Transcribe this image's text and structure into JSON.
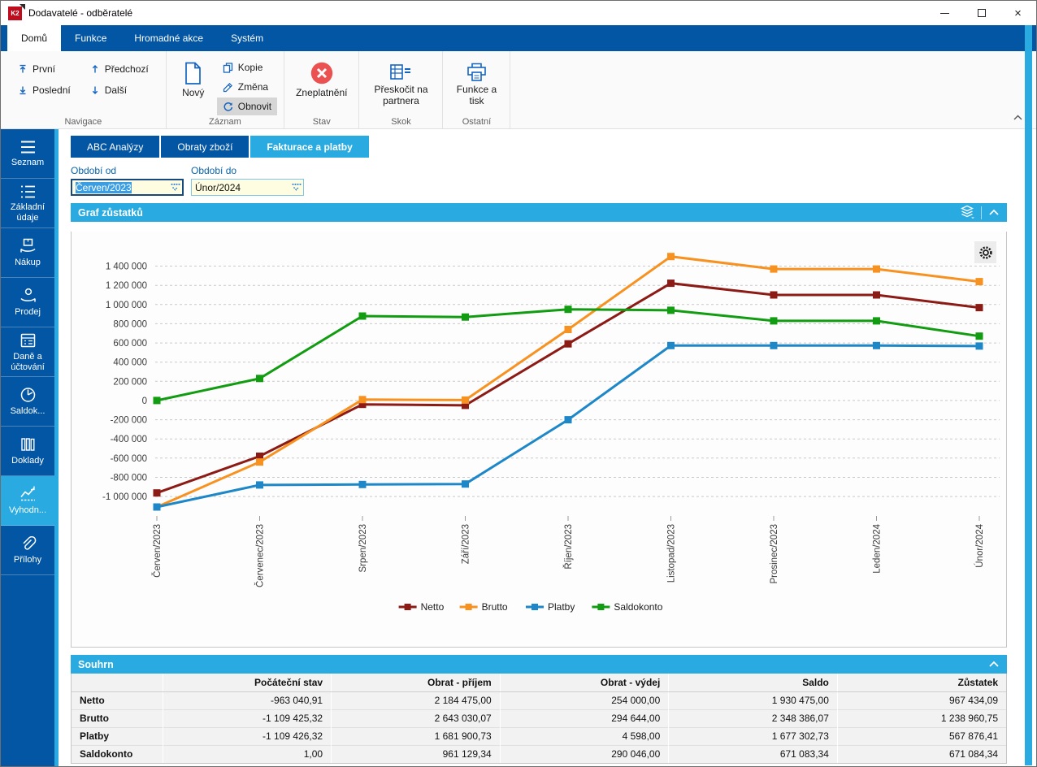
{
  "window": {
    "title": "Dodavatelé - odběratelé",
    "app_badge": "K2"
  },
  "ribbon": {
    "tabs": [
      {
        "label": "Domů",
        "active": true
      },
      {
        "label": "Funkce",
        "active": false
      },
      {
        "label": "Hromadné akce",
        "active": false
      },
      {
        "label": "Systém",
        "active": false
      }
    ],
    "navigace": {
      "label": "Navigace",
      "first": "První",
      "last": "Poslední",
      "prev": "Předchozí",
      "next": "Další"
    },
    "zaznam": {
      "label": "Záznam",
      "new": "Nový",
      "copy": "Kopie",
      "change": "Změna",
      "refresh": "Obnovit",
      "refresh_highlighted": true
    },
    "stav": {
      "label": "Stav",
      "invalidate": "Zneplatnění"
    },
    "skok": {
      "label": "Skok",
      "jump": "Přeskočit na partnera"
    },
    "ostatni": {
      "label": "Ostatní",
      "print": "Funkce a tisk"
    }
  },
  "sidebar": {
    "items": [
      {
        "label": "Seznam",
        "active": false
      },
      {
        "label": "Základní údaje",
        "active": false
      },
      {
        "label": "Nákup",
        "active": false
      },
      {
        "label": "Prodej",
        "active": false
      },
      {
        "label": "Daně a účtování",
        "active": false
      },
      {
        "label": "Saldok...",
        "active": false
      },
      {
        "label": "Doklady",
        "active": false
      },
      {
        "label": "Vyhodn...",
        "active": true
      },
      {
        "label": "Přílohy",
        "active": false
      }
    ]
  },
  "content": {
    "tabs": [
      {
        "label": "ABC Analýzy",
        "active": false
      },
      {
        "label": "Obraty zboží",
        "active": false
      },
      {
        "label": "Fakturace a platby",
        "active": true
      }
    ],
    "filters": {
      "from": {
        "label": "Období od",
        "value": "Červen/2023",
        "focused": true
      },
      "to": {
        "label": "Období do",
        "value": "Únor/2024",
        "focused": false
      }
    }
  },
  "panels": {
    "chart": {
      "title": "Graf zůstatků"
    },
    "summary": {
      "title": "Souhrn"
    }
  },
  "chart_data": {
    "type": "line",
    "title": "Graf zůstatků",
    "marker": "square",
    "grid": "horizontal-dashed",
    "legend_position": "bottom",
    "categories": [
      "Červen/2023",
      "Červenec/2023",
      "Srpen/2023",
      "Září/2023",
      "Říjen/2023",
      "Listopad/2023",
      "Prosinec/2023",
      "Leden/2024",
      "Únor/2024"
    ],
    "series": [
      {
        "name": "Netto",
        "color": "#8c1a15",
        "values": [
          -963041,
          -580000,
          -40000,
          -50000,
          590000,
          1221434,
          1100000,
          1100000,
          967434
        ]
      },
      {
        "name": "Brutto",
        "color": "#f79120",
        "values": [
          -1109425,
          -640000,
          10000,
          5000,
          740000,
          1500000,
          1370000,
          1370000,
          1238961
        ]
      },
      {
        "name": "Platby",
        "color": "#1d87c8",
        "values": [
          -1109426,
          -880000,
          -875000,
          -870000,
          -200000,
          572474,
          572474,
          572474,
          567876
        ]
      },
      {
        "name": "Saldokonto",
        "color": "#119c11",
        "values": [
          1,
          230000,
          880000,
          870000,
          950000,
          940000,
          830000,
          830000,
          671084
        ]
      }
    ],
    "ylim": [
      -1160000,
      1540000
    ],
    "yticks": {
      "values": [
        1400000,
        1200000,
        1000000,
        800000,
        600000,
        400000,
        200000,
        0,
        -200000,
        -400000,
        -600000,
        -800000,
        -1000000
      ],
      "labels": [
        "1 400 000",
        "1 200 000",
        "1 000 000",
        "800 000",
        "600 000",
        "400 000",
        "200 000",
        "0",
        "-200 000",
        "-400 000",
        "-600 000",
        "-800 000",
        "-1 000 000"
      ]
    }
  },
  "summary": {
    "columns": [
      "",
      "Počáteční stav",
      "Obrat - příjem",
      "Obrat - výdej",
      "Saldo",
      "Zůstatek"
    ],
    "rows": [
      {
        "label": "Netto",
        "values": [
          "-963 040,91",
          "2 184 475,00",
          "254 000,00",
          "1 930 475,00",
          "967 434,09"
        ]
      },
      {
        "label": "Brutto",
        "values": [
          "-1 109 425,32",
          "2 643 030,07",
          "294 644,00",
          "2 348 386,07",
          "1 238 960,75"
        ]
      },
      {
        "label": "Platby",
        "values": [
          "-1 109 426,32",
          "1 681 900,73",
          "4 598,00",
          "1 677 302,73",
          "567 876,41"
        ]
      },
      {
        "label": "Saldokonto",
        "values": [
          "1,00",
          "961 129,34",
          "290 046,00",
          "671 083,34",
          "671 084,34"
        ]
      }
    ]
  },
  "icons": {
    "k2-logo": "red square badge K2",
    "minimize-icon": "–",
    "maximize-icon": "□",
    "close-icon": "×",
    "first-icon": "arrow up to bar",
    "last-icon": "arrow down to bar",
    "previous-icon": "arrow up",
    "next-icon": "arrow down",
    "new-document-icon": "blank page",
    "copy-icon": "two pages",
    "edit-pencil-icon": "pencil",
    "refresh-icon": "circular arrows",
    "invalidate-icon": "red circle with white X",
    "jump-partner-icon": "table grid",
    "printer-icon": "printer",
    "hamburger-icon": "three lines",
    "detail-list-icon": "bulleted lines",
    "purchase-icon": "box over hand",
    "sale-icon": "coin over hand",
    "taxes-icon": "calculator sheet",
    "balance-icon": "clock pie",
    "documents-icon": "books",
    "evaluation-chart-icon": "trend line",
    "paperclip-icon": "paperclip",
    "layers-icon": "stacked layers",
    "collapse-chevron-icon": "chevron up",
    "gear-icon": "settings gear",
    "combo-dropdown-icon": "dotted chevron down"
  }
}
